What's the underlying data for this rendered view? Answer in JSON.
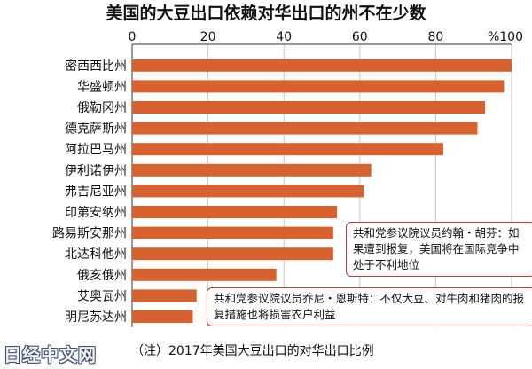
{
  "chart_data": {
    "type": "bar",
    "orientation": "horizontal",
    "title": "美国的大豆出口依赖对华出口的州不在少数",
    "unit_label": "%100",
    "xlim": [
      0,
      100
    ],
    "ticks": [
      "0",
      "20",
      "40",
      "60",
      "80"
    ],
    "tick_values": [
      0,
      20,
      40,
      60,
      80
    ],
    "categories": [
      "密西西比州",
      "华盛顿州",
      "俄勒冈州",
      "德克萨斯州",
      "阿拉巴马州",
      "伊利诺伊州",
      "弗吉尼亚州",
      "印第安纳州",
      "路易斯安那州",
      "北达科他州",
      "俄亥俄州",
      "艾奥瓦州",
      "明尼苏达州"
    ],
    "values": [
      100,
      98,
      93,
      91,
      82,
      63,
      61,
      54,
      53,
      53,
      38,
      17,
      16
    ],
    "bar_color": "#d7622f",
    "grid": true
  },
  "callouts": {
    "a": "共和党参议院议员约翰・胡芬：如果遭到报复，美国将在国际竞争中处于不利地位",
    "b": "共和党参议院议员乔尼・恩斯特：不仅大豆、对牛肉和猪肉的报复措施也将损害农户利益"
  },
  "footnote": "（注）2017年美国大豆出口的对华出口比例",
  "logo": "日经中文网",
  "colors": {
    "callout_border": "#c03a3a"
  }
}
